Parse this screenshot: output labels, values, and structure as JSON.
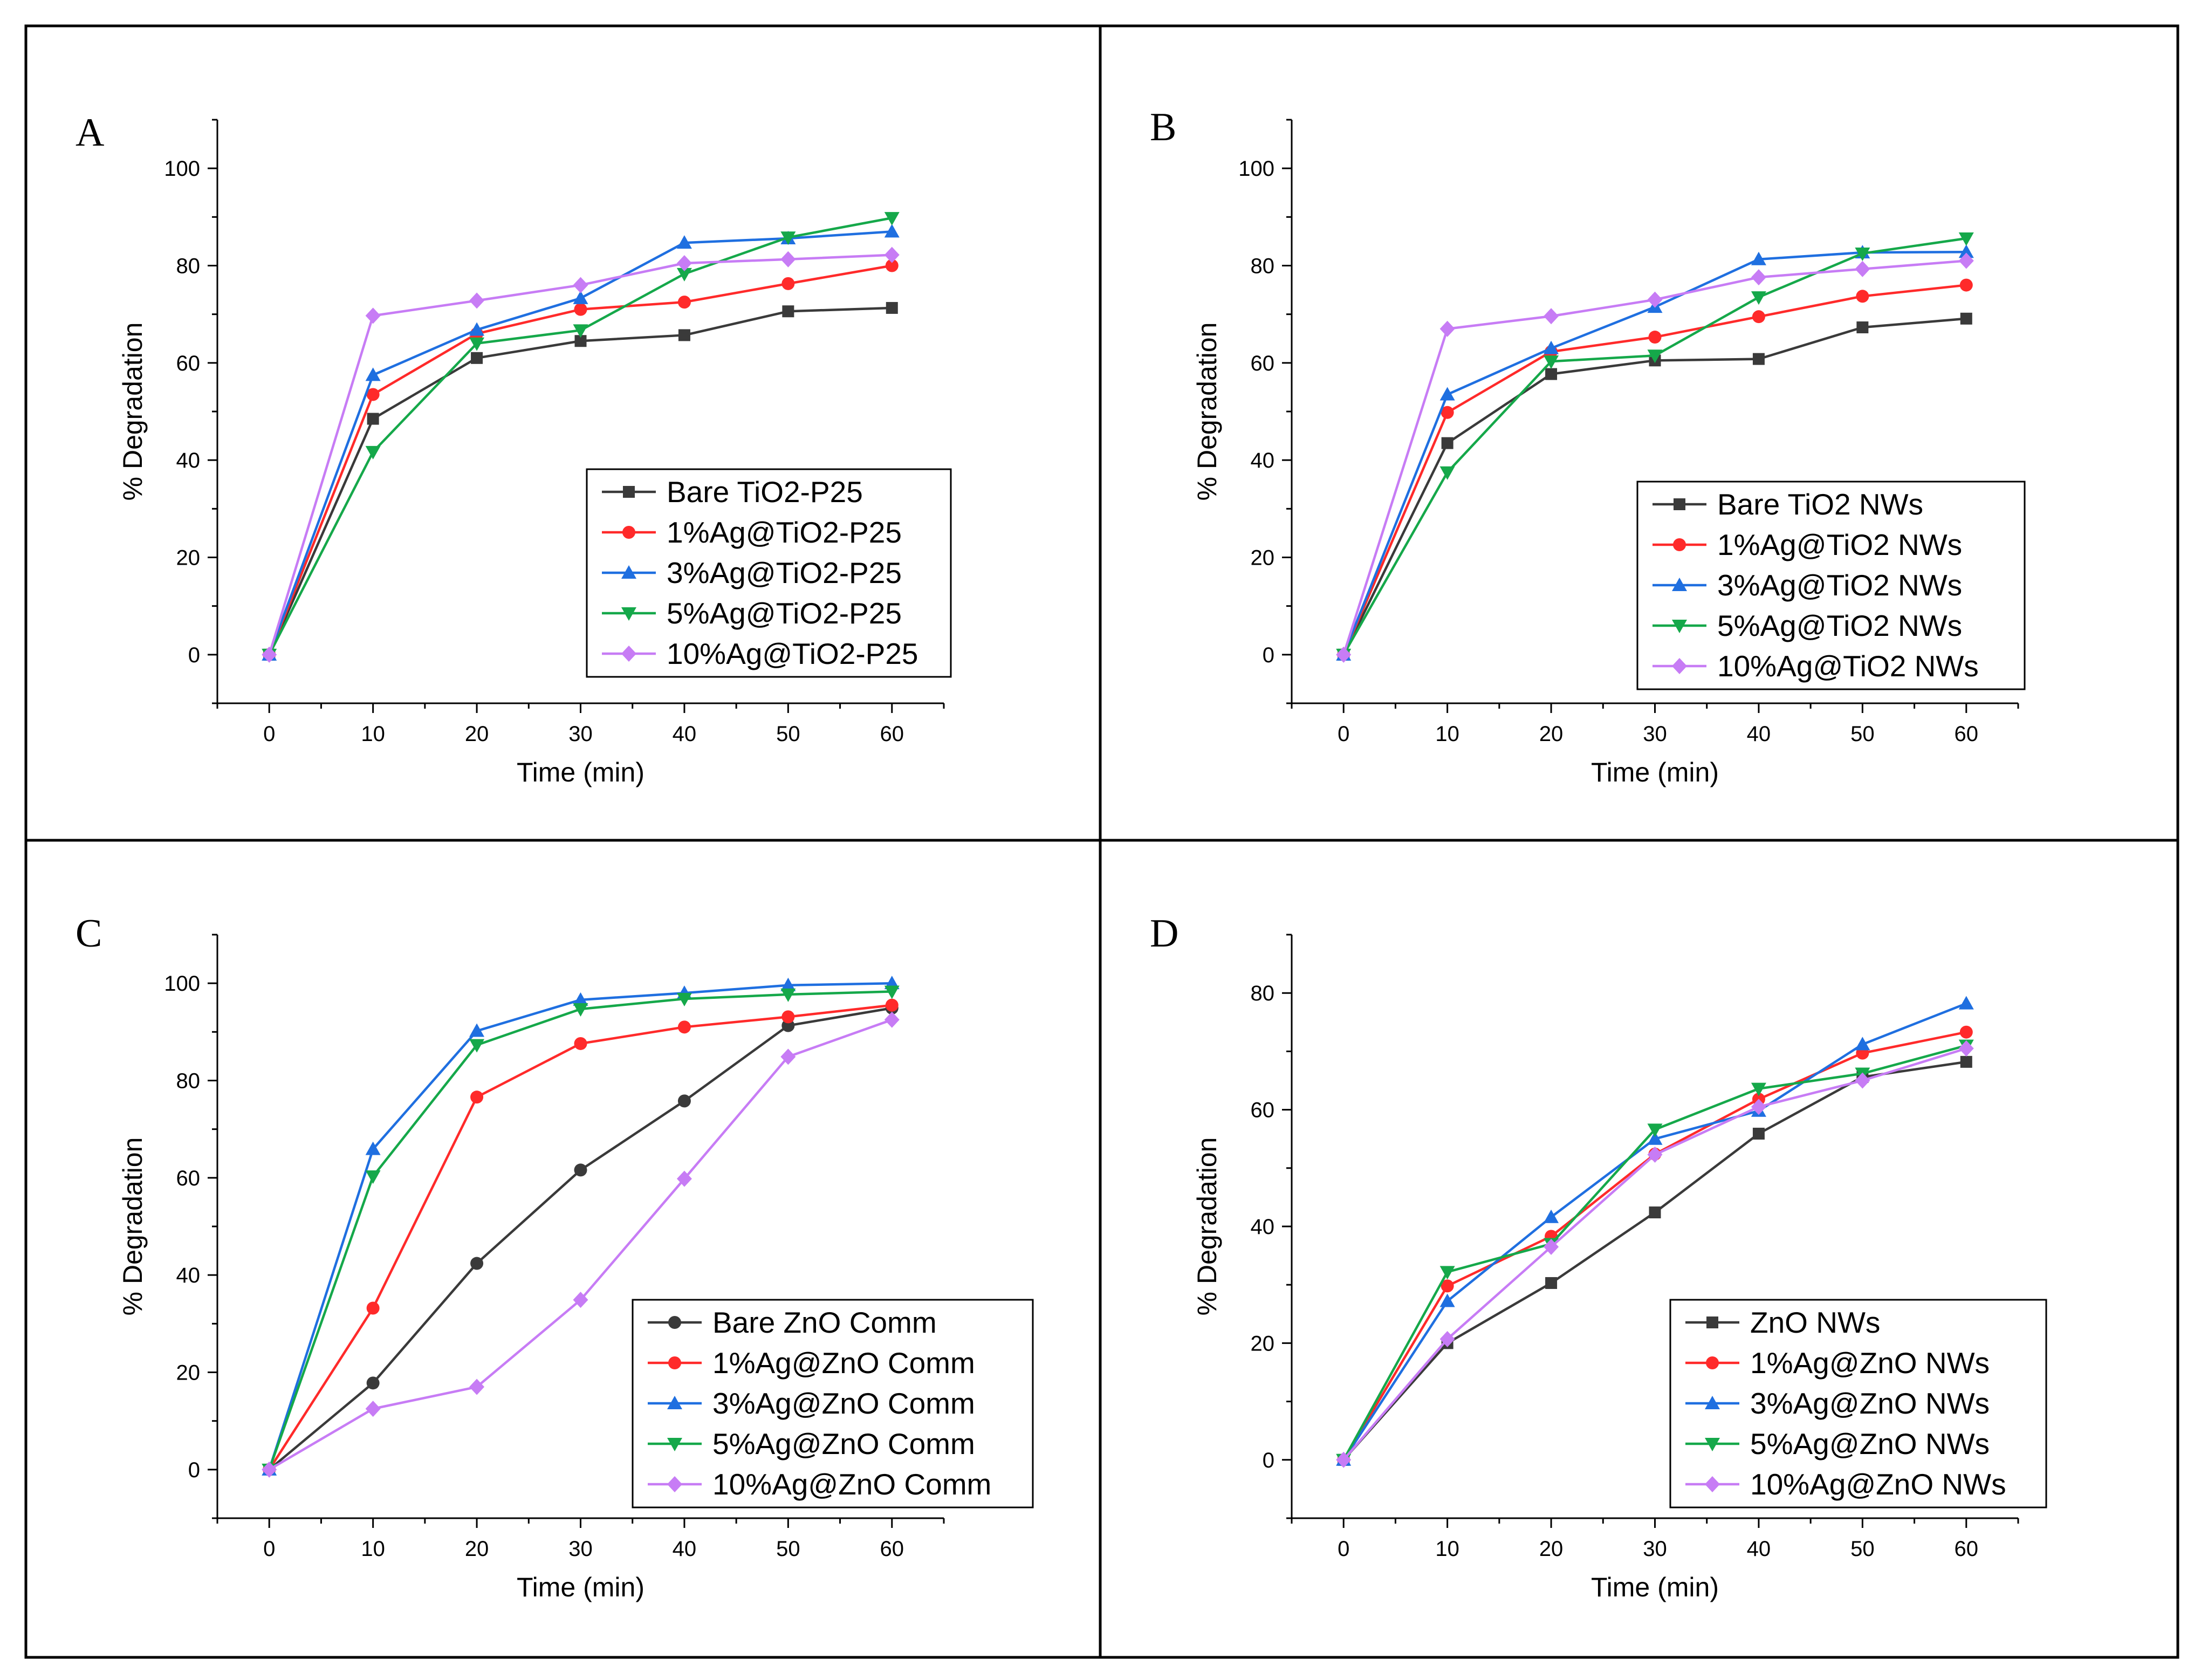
{
  "figure": {
    "marker_colors": {
      "square": "#3a3a3a",
      "circle": "#ff2a2a",
      "triangle_up": "#1f6fe0",
      "triangle_down": "#15a84a",
      "diamond": "#c77cf5"
    }
  },
  "chart_data": [
    {
      "panel": "A",
      "type": "line",
      "xlabel": "Time (min)",
      "ylabel": "% Degradation",
      "x": [
        0,
        10,
        20,
        30,
        40,
        50,
        60
      ],
      "xlim": [
        -5,
        65
      ],
      "ylim": [
        -10,
        110
      ],
      "xticks": [
        0,
        10,
        20,
        30,
        40,
        50,
        60
      ],
      "yticks": [
        0,
        20,
        40,
        60,
        80,
        100
      ],
      "legend_position": "bottom-right",
      "series": [
        {
          "name": "Bare TiO2-P25",
          "color": "#3a3a3a",
          "marker": "square",
          "values": [
            0,
            48.5,
            61,
            64.5,
            65.7,
            70.6,
            71.3
          ]
        },
        {
          "name": "1%Ag@TiO2-P25",
          "color": "#ff2a2a",
          "marker": "circle",
          "values": [
            0,
            53.5,
            66,
            71,
            72.5,
            76.3,
            80
          ]
        },
        {
          "name": "3%Ag@TiO2-P25",
          "color": "#1f6fe0",
          "marker": "triangle_up",
          "values": [
            0,
            57.5,
            66.8,
            73.3,
            84.7,
            85.6,
            87
          ]
        },
        {
          "name": "5%Ag@TiO2-P25",
          "color": "#15a84a",
          "marker": "triangle_down",
          "values": [
            0,
            41.7,
            64,
            66.7,
            78.3,
            85.8,
            89.8
          ]
        },
        {
          "name": "10%Ag@TiO2-P25",
          "color": "#c77cf5",
          "marker": "diamond",
          "values": [
            0,
            69.7,
            72.8,
            76,
            80.5,
            81.3,
            82.2
          ]
        }
      ]
    },
    {
      "panel": "B",
      "type": "line",
      "xlabel": "Time (min)",
      "ylabel": "% Degradation",
      "x": [
        0,
        10,
        20,
        30,
        40,
        50,
        60
      ],
      "xlim": [
        -5,
        65
      ],
      "ylim": [
        -10,
        110
      ],
      "xticks": [
        0,
        10,
        20,
        30,
        40,
        50,
        60
      ],
      "yticks": [
        0,
        20,
        40,
        60,
        80,
        100
      ],
      "legend_position": "bottom-right",
      "series": [
        {
          "name": "Bare TiO2 NWs",
          "color": "#3a3a3a",
          "marker": "square",
          "values": [
            0,
            43.5,
            57.7,
            60.5,
            60.8,
            67.3,
            69.1
          ]
        },
        {
          "name": "1%Ag@TiO2 NWs",
          "color": "#ff2a2a",
          "marker": "circle",
          "values": [
            0,
            49.8,
            62.3,
            65.3,
            69.5,
            73.7,
            76
          ]
        },
        {
          "name": "3%Ag@TiO2 NWs",
          "color": "#1f6fe0",
          "marker": "triangle_up",
          "values": [
            0,
            53.5,
            63,
            71.5,
            81.3,
            82.7,
            82.8
          ]
        },
        {
          "name": "5%Ag@TiO2 NWs",
          "color": "#15a84a",
          "marker": "triangle_down",
          "values": [
            0,
            37.5,
            60.3,
            61.5,
            73.5,
            82.5,
            85.6
          ]
        },
        {
          "name": "10%Ag@TiO2 NWs",
          "color": "#c77cf5",
          "marker": "diamond",
          "values": [
            0,
            67,
            69.6,
            73,
            77.6,
            79.3,
            81
          ]
        }
      ]
    },
    {
      "panel": "C",
      "type": "line",
      "xlabel": "Time (min)",
      "ylabel": "% Degradation",
      "x": [
        0,
        10,
        20,
        30,
        40,
        50,
        60
      ],
      "xlim": [
        -5,
        65
      ],
      "ylim": [
        -10,
        110
      ],
      "xticks": [
        0,
        10,
        20,
        30,
        40,
        50,
        60
      ],
      "yticks": [
        0,
        20,
        40,
        60,
        80,
        100
      ],
      "legend_position": "bottom-right",
      "series": [
        {
          "name": "Bare ZnO Comm",
          "color": "#3a3a3a",
          "marker": "circle",
          "values": [
            0,
            17.8,
            42.4,
            61.6,
            75.8,
            91.3,
            94.9
          ]
        },
        {
          "name": "1%Ag@ZnO Comm",
          "color": "#ff2a2a",
          "marker": "circle",
          "values": [
            0,
            33.2,
            76.6,
            87.6,
            91,
            93.1,
            95.5
          ]
        },
        {
          "name": "3%Ag@ZnO Comm",
          "color": "#1f6fe0",
          "marker": "triangle_up",
          "values": [
            0,
            65.9,
            90.2,
            96.6,
            98,
            99.6,
            100
          ]
        },
        {
          "name": "5%Ag@ZnO Comm",
          "color": "#15a84a",
          "marker": "triangle_down",
          "values": [
            0,
            60.3,
            87.3,
            94.7,
            96.8,
            97.7,
            98.3
          ]
        },
        {
          "name": "10%Ag@ZnO Comm",
          "color": "#c77cf5",
          "marker": "diamond",
          "values": [
            0,
            12.5,
            17,
            34.9,
            59.8,
            84.9,
            92.5
          ]
        }
      ]
    },
    {
      "panel": "D",
      "type": "line",
      "xlabel": "Time (min)",
      "ylabel": "% Degradation",
      "x": [
        0,
        10,
        20,
        30,
        40,
        50,
        60
      ],
      "xlim": [
        -5,
        65
      ],
      "ylim": [
        -10,
        90
      ],
      "xticks": [
        0,
        10,
        20,
        30,
        40,
        50,
        60
      ],
      "yticks": [
        0,
        20,
        40,
        60,
        80
      ],
      "legend_position": "bottom-right",
      "series": [
        {
          "name": "ZnO NWs",
          "color": "#3a3a3a",
          "marker": "square",
          "values": [
            0,
            20,
            30.3,
            42.4,
            55.9,
            65.6,
            68.2
          ]
        },
        {
          "name": "1%Ag@ZnO NWs",
          "color": "#ff2a2a",
          "marker": "circle",
          "values": [
            0,
            29.8,
            38.3,
            52.4,
            61.8,
            69.7,
            73.3
          ]
        },
        {
          "name": "3%Ag@ZnO NWs",
          "color": "#1f6fe0",
          "marker": "triangle_up",
          "values": [
            0,
            27.2,
            41.6,
            55,
            59.8,
            71.2,
            78.2
          ]
        },
        {
          "name": "5%Ag@ZnO NWs",
          "color": "#15a84a",
          "marker": "triangle_down",
          "values": [
            0,
            32.2,
            37,
            56.6,
            63.6,
            66.2,
            71
          ]
        },
        {
          "name": "10%Ag@ZnO NWs",
          "color": "#c77cf5",
          "marker": "diamond",
          "values": [
            0,
            20.7,
            36.5,
            52.3,
            60.5,
            65,
            70.5
          ]
        }
      ]
    }
  ]
}
